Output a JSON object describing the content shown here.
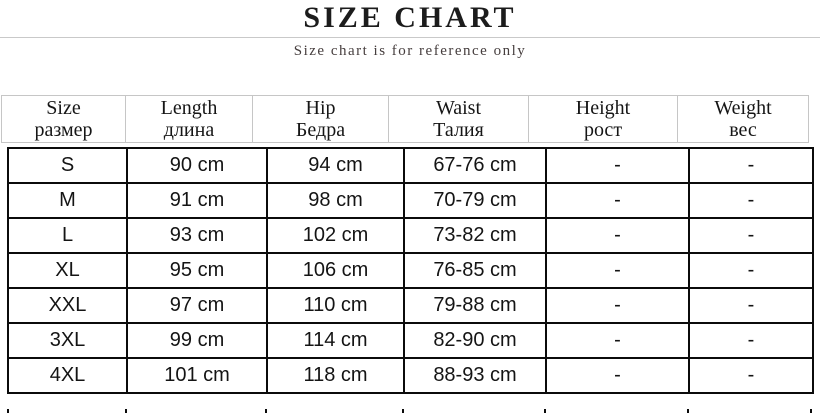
{
  "title": "SIZE CHART",
  "subtitle": "Size chart is for reference only",
  "table": {
    "columns": [
      {
        "en": "Size",
        "ru": "размер"
      },
      {
        "en": "Length",
        "ru": "длина"
      },
      {
        "en": "Hip",
        "ru": "Бедра"
      },
      {
        "en": "Waist",
        "ru": "Талия"
      },
      {
        "en": "Height",
        "ru": "рост"
      },
      {
        "en": "Weight",
        "ru": "вес"
      }
    ],
    "rows": [
      [
        "S",
        "90 cm",
        "94 cm",
        "67-76 cm",
        "-",
        "-"
      ],
      [
        "M",
        "91 cm",
        "98 cm",
        "70-79 cm",
        "-",
        "-"
      ],
      [
        "L",
        "93 cm",
        "102 cm",
        "73-82 cm",
        "-",
        "-"
      ],
      [
        "XL",
        "95 cm",
        "106 cm",
        "76-85 cm",
        "-",
        "-"
      ],
      [
        "XXL",
        "97 cm",
        "110 cm",
        "79-88 cm",
        "-",
        "-"
      ],
      [
        "3XL",
        "99 cm",
        "114 cm",
        "82-90 cm",
        "-",
        "-"
      ],
      [
        "4XL",
        "101 cm",
        "118 cm",
        "88-93 cm",
        "-",
        "-"
      ]
    ]
  },
  "colors": {
    "body_border": "#0b0b0b",
    "header_border": "#c6c6c6",
    "divider_rule": "#c9c9c9",
    "text": "#141414"
  }
}
